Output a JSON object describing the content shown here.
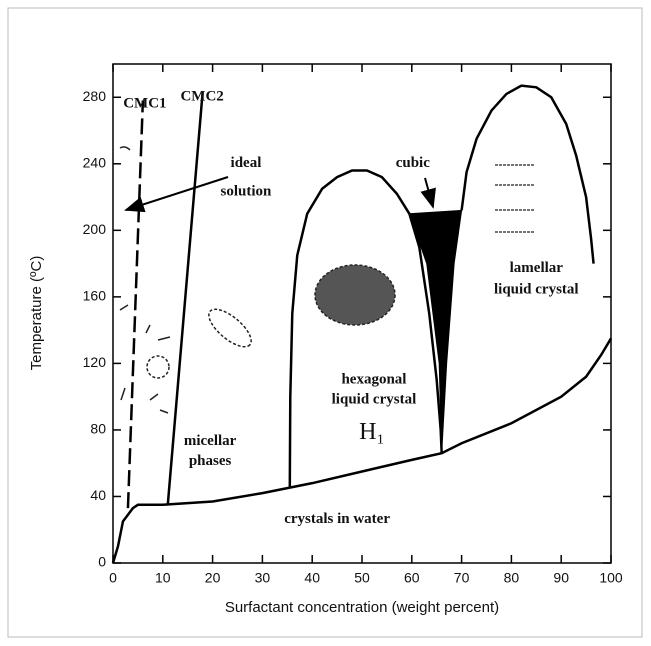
{
  "chart_data": {
    "type": "line",
    "xlabel": "Surfactant concentration (weight percent)",
    "ylabel": "Temperature (ºC)",
    "xlim": [
      0,
      100
    ],
    "ylim": [
      0,
      300
    ],
    "xticks": [
      0,
      10,
      20,
      30,
      40,
      50,
      60,
      70,
      80,
      90,
      100
    ],
    "yticks": [
      0,
      40,
      80,
      120,
      160,
      200,
      240,
      280
    ],
    "series": [
      {
        "color": "#000000",
        "fill": true,
        "x": [
          59.5,
          70,
          68.5,
          67,
          66,
          65.5,
          63,
          59.5
        ],
        "values": [
          210,
          212,
          180,
          120,
          66,
          120,
          180,
          210
        ]
      },
      {
        "color": "#000000",
        "dash": true,
        "x": [
          3,
          6
        ],
        "values": [
          33,
          278
        ]
      },
      {
        "color": "#000000",
        "x": [
          11,
          18
        ],
        "values": [
          35,
          283
        ]
      },
      {
        "color": "#000000",
        "x": [
          0,
          1,
          2,
          4,
          5,
          10,
          20,
          30,
          40,
          50,
          60,
          66,
          70,
          80,
          90,
          95,
          98,
          100
        ],
        "values": [
          0,
          10,
          25,
          33,
          35,
          35,
          37,
          42,
          48,
          55,
          62,
          66,
          72,
          84,
          100,
          112,
          125,
          135
        ]
      },
      {
        "color": "#000000",
        "x": [
          35.5,
          35.6,
          36,
          37,
          39,
          42,
          45,
          48,
          51,
          54,
          57,
          59.5,
          61.5,
          63.5,
          65,
          65.8,
          66
        ],
        "values": [
          45,
          100,
          150,
          185,
          210,
          225,
          232,
          236,
          236,
          232,
          222,
          210,
          190,
          150,
          110,
          80,
          66
        ]
      },
      {
        "color": "#000000",
        "x": [
          70,
          71,
          73,
          76,
          79,
          82,
          85,
          88,
          91,
          93,
          95,
          96,
          96.5
        ],
        "values": [
          212,
          235,
          255,
          272,
          282,
          287,
          286,
          280,
          264,
          245,
          220,
          195,
          180
        ]
      }
    ],
    "annotations": [
      "CMC1",
      "CMC2",
      "ideal",
      "solution",
      "cubic",
      "lamellar",
      "liquid crystal",
      "hexagonal",
      "liquid crystal",
      "H₁",
      "micellar",
      "phases",
      "crystals in water"
    ]
  }
}
